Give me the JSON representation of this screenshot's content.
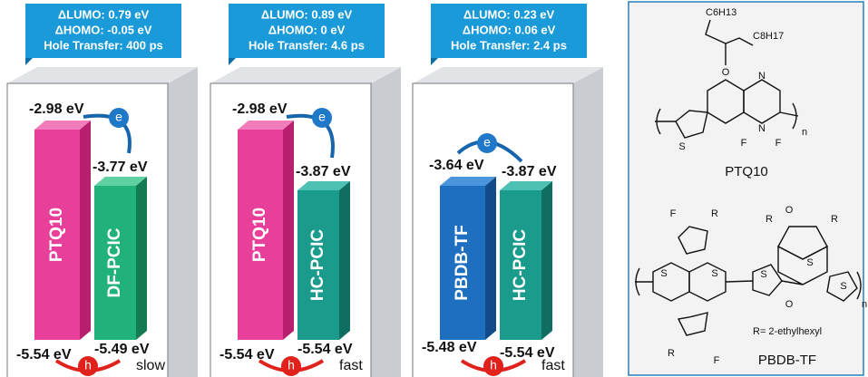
{
  "panels": [
    {
      "header": [
        "ΔLUMO: 0.79 eV",
        "ΔHOMO: -0.05 eV",
        "Hole Transfer: 400 ps"
      ],
      "donor": {
        "name": "PTQ10",
        "lumo": "-2.98 eV",
        "homo": "-5.54 eV"
      },
      "acceptor": {
        "name": "DF-PCIC",
        "lumo": "-3.77 eV",
        "homo": "-5.49 eV"
      },
      "electron": "e",
      "hole": "h",
      "rate": "slow"
    },
    {
      "header": [
        "ΔLUMO: 0.89 eV",
        "ΔHOMO: 0 eV",
        "Hole Transfer: 4.6 ps"
      ],
      "donor": {
        "name": "PTQ10",
        "lumo": "-2.98 eV",
        "homo": "-5.54 eV"
      },
      "acceptor": {
        "name": "HC-PCIC",
        "lumo": "-3.87 eV",
        "homo": "-5.54 eV"
      },
      "electron": "e",
      "hole": "h",
      "rate": "fast"
    },
    {
      "header": [
        "ΔLUMO: 0.23 eV",
        "ΔHOMO: 0.06 eV",
        "Hole Transfer: 2.4 ps"
      ],
      "donor": {
        "name": "PBDB-TF",
        "lumo": "-3.64 eV",
        "homo": "-5.48 eV"
      },
      "acceptor": {
        "name": "HC-PCIC",
        "lumo": "-3.87 eV",
        "homo": "-5.54 eV"
      },
      "electron": "e",
      "hole": "h",
      "rate": "fast"
    }
  ],
  "structures": {
    "ptq10": {
      "name": "PTQ10",
      "side_chain_1": "C6H13",
      "side_chain_2": "C8H17",
      "repeat": "n",
      "atoms": [
        "O",
        "N",
        "N",
        "F",
        "F",
        "S"
      ]
    },
    "pbdbtf": {
      "name": "PBDB-TF",
      "note": "R= 2-ethylhexyl",
      "repeat": "n",
      "atoms": [
        "F",
        "R",
        "R",
        "R",
        "S",
        "S",
        "S",
        "S",
        "S",
        "O",
        "O",
        "R",
        "F"
      ]
    }
  }
}
